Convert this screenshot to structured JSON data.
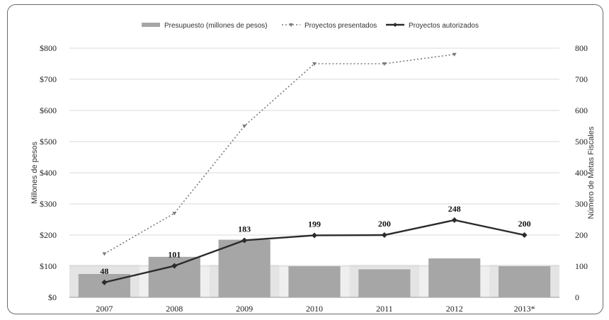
{
  "chart_data": {
    "type": "bar",
    "categories": [
      "2007",
      "2008",
      "2009",
      "2010",
      "2011",
      "2012",
      "2013*"
    ],
    "series": [
      {
        "name": "Presupuesto (millones de pesos)",
        "type": "bar",
        "axis": "left",
        "values": [
          75,
          130,
          185,
          100,
          90,
          125,
          100
        ]
      },
      {
        "name": "Proyectos presentados",
        "type": "line",
        "axis": "right",
        "style": "dotted",
        "values": [
          140,
          270,
          550,
          750,
          750,
          780,
          null
        ]
      },
      {
        "name": "Proyectos autorizados",
        "type": "line",
        "axis": "right",
        "style": "solid",
        "values": [
          48,
          101,
          183,
          199,
          200,
          248,
          200
        ],
        "labels": [
          "48",
          "101",
          "183",
          "199",
          "200",
          "248",
          "200"
        ]
      }
    ],
    "ylabel": "Millones de pesos",
    "y2label": "Número de Metas Fiscales",
    "ylim": [
      0,
      800
    ],
    "y2lim": [
      0,
      800
    ],
    "yticks": [
      "$0",
      "$100",
      "$200",
      "$300",
      "$400",
      "$500",
      "$600",
      "$700",
      "$800"
    ],
    "y2ticks": [
      "0",
      "100",
      "200",
      "300",
      "400",
      "500",
      "600",
      "700",
      "800"
    ],
    "legend": "top-center",
    "grid": true,
    "colors": {
      "bar": "#a6a6a6",
      "bar_alt": "#d6d6d6",
      "presentados": "#7a7a7a",
      "autorizados": "#2b2b2b",
      "grid": "#d9d9d9"
    }
  }
}
